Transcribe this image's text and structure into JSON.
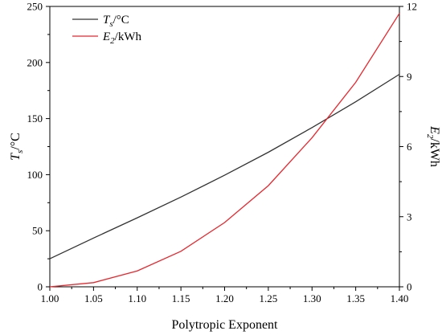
{
  "chart_data": {
    "type": "line",
    "title": "",
    "x": [
      1.0,
      1.05,
      1.1,
      1.15,
      1.2,
      1.25,
      1.3,
      1.35,
      1.4
    ],
    "x_tick_labels": [
      "1.00",
      "1.05",
      "1.10",
      "1.15",
      "1.20",
      "1.25",
      "1.30",
      "1.35",
      "1.40"
    ],
    "xlabel": "Polytropic Exponent",
    "xlim": [
      1.0,
      1.4
    ],
    "ylim_left": [
      0,
      250
    ],
    "ylim_right": [
      0,
      12
    ],
    "y_left_ticks": [
      "0",
      "50",
      "100",
      "150",
      "200",
      "250"
    ],
    "y_right_ticks": [
      "0",
      "3",
      "6",
      "9",
      "12"
    ],
    "ylabel_left": {
      "main": "T",
      "sub": "s",
      "rest": "/°C"
    },
    "ylabel_right": {
      "main": "E",
      "sub": "2",
      "rest": "/kWh"
    },
    "grid": false,
    "legend_position": "top-left",
    "series": [
      {
        "name": "Ts/°C",
        "name_parts": {
          "main": "T",
          "sub": "s",
          "rest": "/°C"
        },
        "axis": "left",
        "color": "#333333",
        "values": [
          25,
          43.5,
          61.5,
          80,
          99.5,
          120,
          142,
          165,
          189.5
        ]
      },
      {
        "name": "E2/kWh",
        "name_parts": {
          "main": "E",
          "sub": "2",
          "rest": "/kWh"
        },
        "axis": "right",
        "color": "#e8262d",
        "values": [
          0,
          0.18,
          0.68,
          1.52,
          2.75,
          4.33,
          6.38,
          8.75,
          11.7
        ]
      }
    ]
  }
}
